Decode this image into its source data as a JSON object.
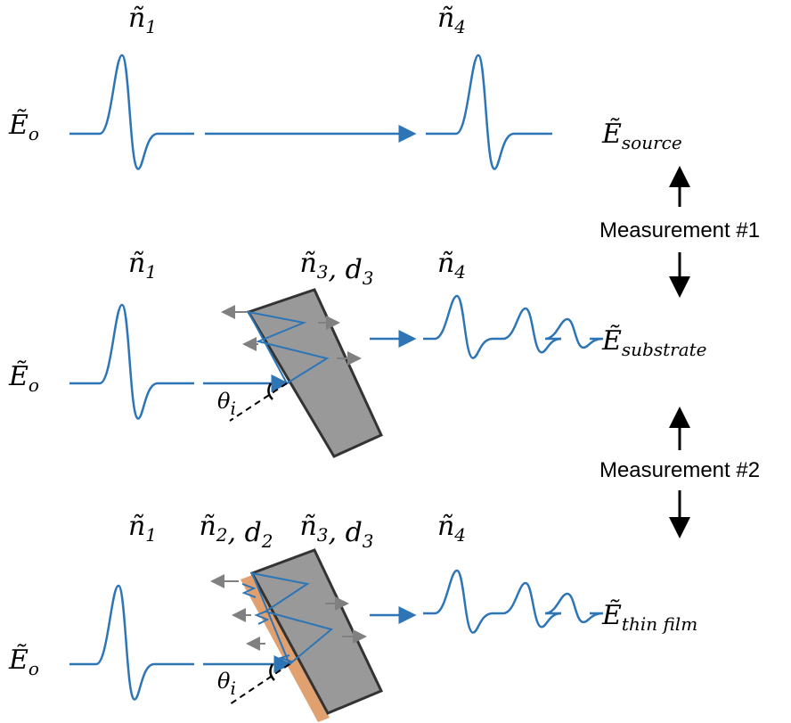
{
  "rows": [
    {
      "media": [
        [
          {
            "base": "ñ",
            "sub": "1"
          }
        ],
        [
          {
            "base": "ñ",
            "sub": "4"
          }
        ]
      ],
      "input": {
        "base": "Ẽ",
        "sub": "o"
      },
      "output": {
        "base": "Ẽ",
        "sub": "source"
      }
    },
    {
      "media": [
        [
          {
            "base": "ñ",
            "sub": "1"
          }
        ],
        [
          {
            "base": "ñ",
            "sub": "3"
          },
          {
            "base": ", d",
            "sub": "3"
          }
        ],
        [
          {
            "base": "ñ",
            "sub": "4"
          }
        ]
      ],
      "input": {
        "base": "Ẽ",
        "sub": "o"
      },
      "angle": {
        "base": "θ",
        "sub": "i"
      },
      "output": {
        "base": "Ẽ",
        "sub": "substrate"
      }
    },
    {
      "media": [
        [
          {
            "base": "ñ",
            "sub": "1"
          }
        ],
        [
          {
            "base": "ñ",
            "sub": "2"
          },
          {
            "base": ", d",
            "sub": "2"
          }
        ],
        [
          {
            "base": "ñ",
            "sub": "3"
          },
          {
            "base": ", d",
            "sub": "3"
          }
        ],
        [
          {
            "base": "ñ",
            "sub": "4"
          }
        ]
      ],
      "input": {
        "base": "Ẽ",
        "sub": "o"
      },
      "angle": {
        "base": "θ",
        "sub": "i"
      },
      "output": {
        "base": "Ẽ",
        "sub": "thin film"
      }
    }
  ],
  "measurements": [
    "Measurement #1",
    "Measurement #2"
  ]
}
